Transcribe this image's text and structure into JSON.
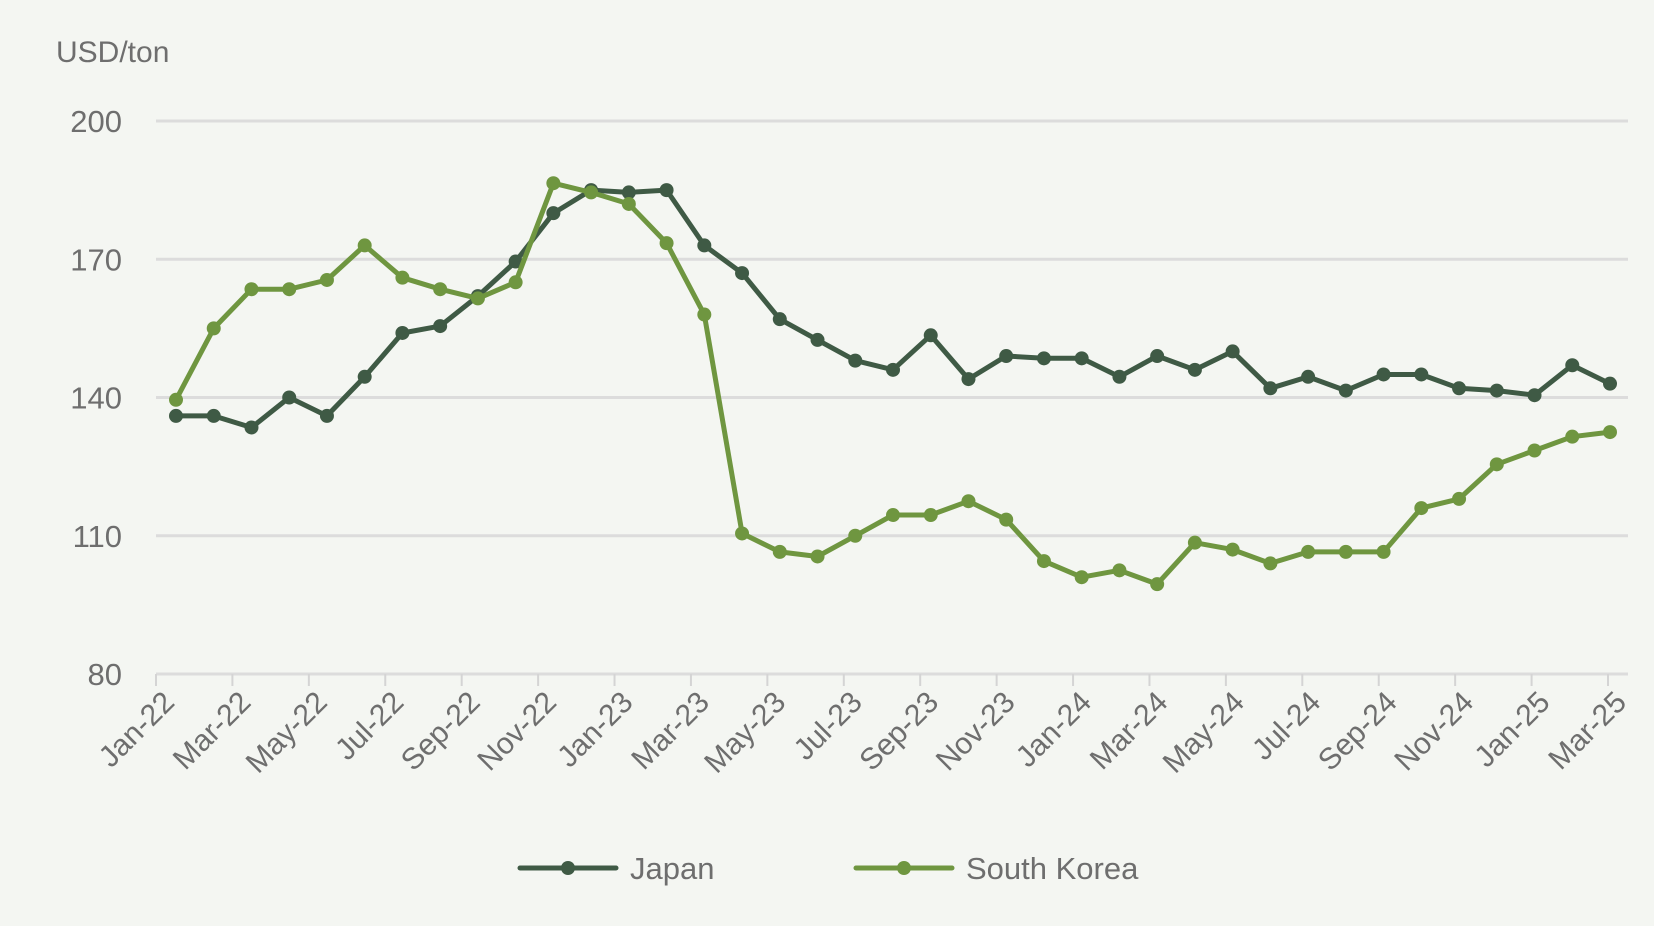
{
  "chart_data": {
    "type": "line",
    "title": "",
    "xlabel": "",
    "ylabel": "USD/ton",
    "ylim": [
      80,
      200
    ],
    "yticks": [
      80,
      110,
      140,
      170,
      200
    ],
    "grid": true,
    "legend_position": "bottom",
    "x_tick_labels": [
      "Jan-22",
      "Mar-22",
      "May-22",
      "Jul-22",
      "Sep-22",
      "Nov-22",
      "Jan-23",
      "Mar-23",
      "May-23",
      "Jul-23",
      "Sep-23",
      "Nov-23",
      "Jan-24",
      "Mar-24",
      "May-24",
      "Jul-24",
      "Sep-24",
      "Nov-24",
      "Jan-25",
      "Mar-25"
    ],
    "x": [
      "Jan-22",
      "Feb-22",
      "Mar-22",
      "Apr-22",
      "May-22",
      "Jun-22",
      "Jul-22",
      "Aug-22",
      "Sep-22",
      "Oct-22",
      "Nov-22",
      "Dec-22",
      "Jan-23",
      "Feb-23",
      "Mar-23",
      "Apr-23",
      "May-23",
      "Jun-23",
      "Jul-23",
      "Aug-23",
      "Sep-23",
      "Oct-23",
      "Nov-23",
      "Dec-23",
      "Jan-24",
      "Feb-24",
      "Mar-24",
      "Apr-24",
      "May-24",
      "Jun-24",
      "Jul-24",
      "Aug-24",
      "Sep-24",
      "Oct-24",
      "Nov-24",
      "Dec-24",
      "Jan-25",
      "Feb-25",
      "Mar-25"
    ],
    "series": [
      {
        "name": "Japan",
        "color": "#3f5a45",
        "values": [
          136,
          136,
          133.5,
          140,
          136,
          144.5,
          154,
          155.5,
          162,
          169.5,
          180,
          185,
          184.5,
          185,
          173,
          167,
          157,
          152.5,
          148,
          146,
          153.5,
          144,
          149,
          148.5,
          148.5,
          144.5,
          149,
          146,
          150,
          142,
          144.5,
          141.5,
          145,
          145,
          142,
          141.5,
          140.5,
          147,
          143
        ]
      },
      {
        "name": "South Korea",
        "color": "#6f9640",
        "values": [
          139.5,
          155,
          163.5,
          163.5,
          165.5,
          173,
          166,
          163.5,
          161.5,
          165,
          186.5,
          184.5,
          182,
          173.5,
          158,
          110.5,
          106.5,
          105.5,
          110,
          114.5,
          114.5,
          117.5,
          113.5,
          104.5,
          101,
          102.5,
          99.5,
          108.5,
          107,
          104,
          106.5,
          106.5,
          106.5,
          116,
          118,
          125.5,
          128.5,
          131.5,
          132.5
        ]
      }
    ]
  }
}
